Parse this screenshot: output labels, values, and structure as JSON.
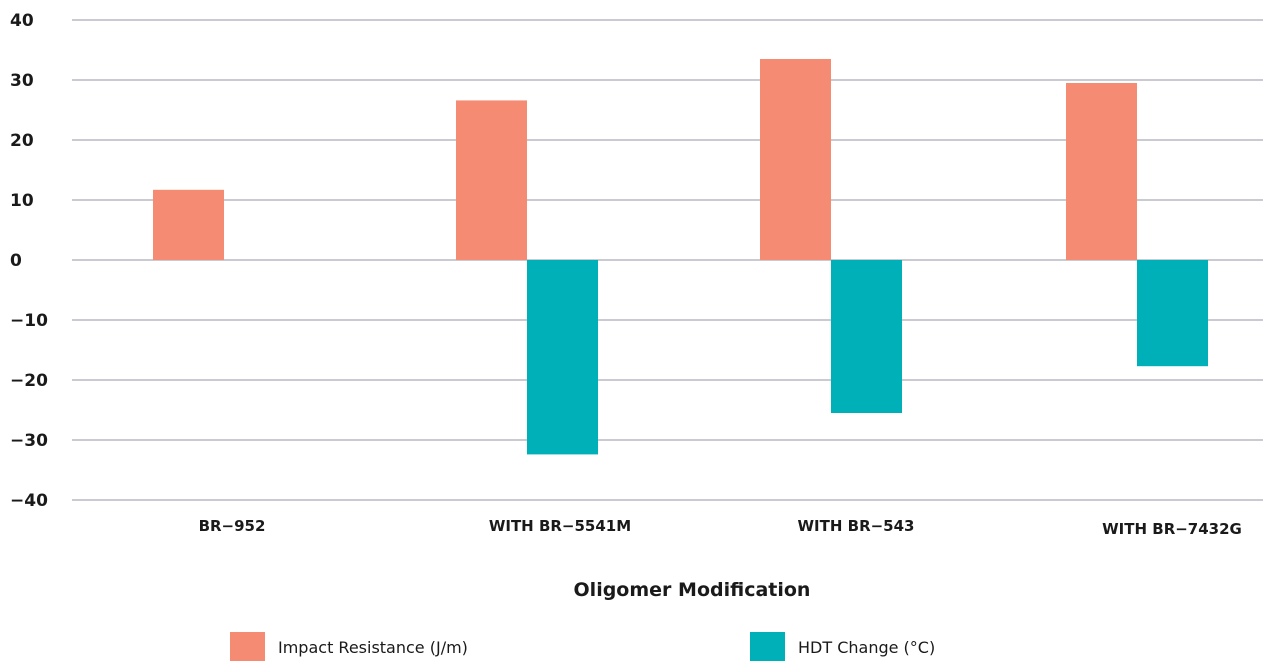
{
  "chart_data": {
    "type": "bar",
    "title": "",
    "xlabel": "Oligomer Modification",
    "ylabel": "",
    "ylim": [
      -40,
      40
    ],
    "yticks": [
      40,
      30,
      20,
      10,
      0,
      -10,
      -20,
      -30,
      -40
    ],
    "ytick_labels": [
      "40",
      "30",
      "20",
      "10",
      "0",
      "−10",
      "−20",
      "−30",
      "−40"
    ],
    "grid": true,
    "legend_position": "bottom",
    "categories": [
      "BR−952",
      "WITH BR−5541M",
      "WITH BR−543",
      "WITH BR−7432G"
    ],
    "series": [
      {
        "name": "Impact Resistance (J/m)",
        "color": "#f48b72",
        "values": [
          11.7,
          26.6,
          33.5,
          29.5
        ]
      },
      {
        "name": "HDT Change (°C)",
        "color": "#00b0b8",
        "values": [
          null,
          -32.4,
          -25.5,
          -17.7
        ]
      }
    ]
  }
}
